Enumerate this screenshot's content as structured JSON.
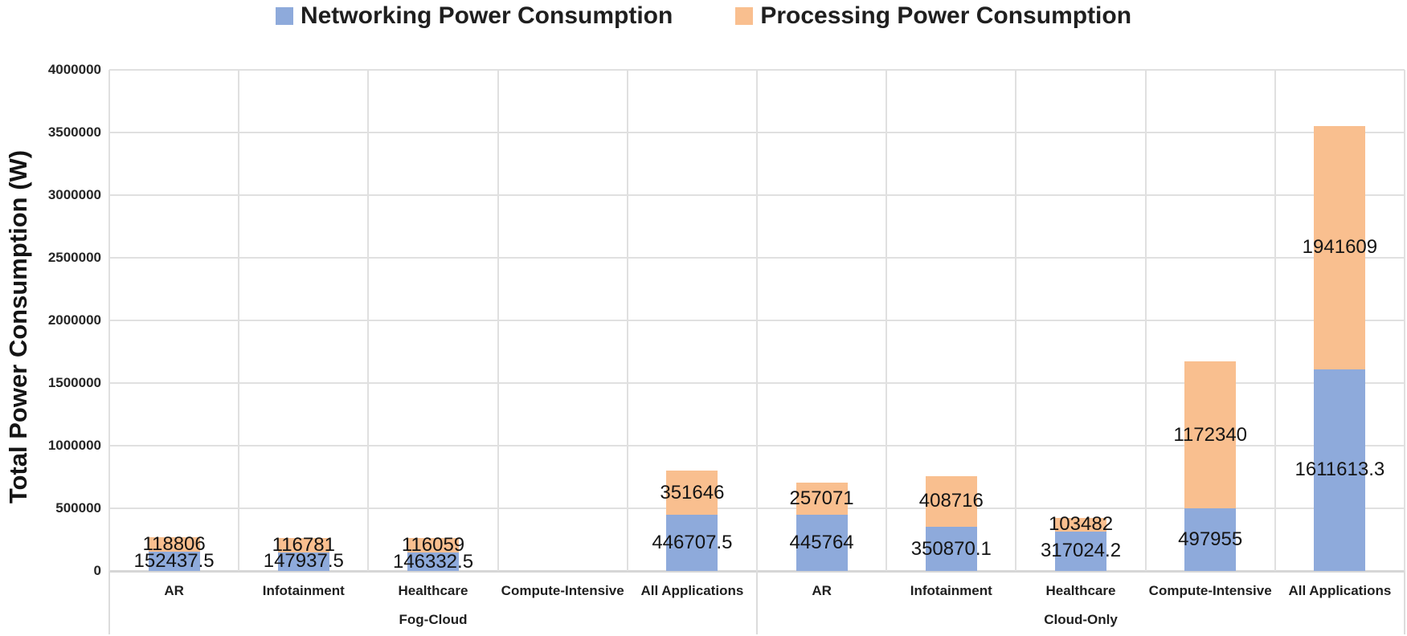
{
  "legend": {
    "items": [
      {
        "name": "networking",
        "label": "Networking Power Consumption",
        "color": "#8EAADB"
      },
      {
        "name": "processing",
        "label": "Processing Power Consumption",
        "color": "#F9BF8F"
      }
    ]
  },
  "chart_data": {
    "type": "bar",
    "stacked": true,
    "title": "",
    "xlabel": "",
    "ylabel": "Total Power Consumption (W)",
    "ylim": [
      0,
      4000000
    ],
    "y_ticks": [
      0,
      500000,
      1000000,
      1500000,
      2000000,
      2500000,
      3000000,
      3500000,
      4000000
    ],
    "grid": true,
    "legend_position": "top-center",
    "categories": [
      "AR",
      "Infotainment",
      "Healthcare",
      "Compute-Intensive",
      "All Applications",
      "AR",
      "Infotainment",
      "Healthcare",
      "Compute-Intensive",
      "All Applications"
    ],
    "group_spans": [
      {
        "label": "Fog-Cloud",
        "start": 0,
        "end": 4
      },
      {
        "label": "Cloud-Only",
        "start": 5,
        "end": 9
      }
    ],
    "series": [
      {
        "name": "Networking Power Consumption",
        "color": "#8EAADB",
        "values": [
          152437.5,
          147937.5,
          146332.5,
          null,
          446707.5,
          445764,
          350870.1,
          317024.2,
          497955,
          1611613.3
        ],
        "labels": [
          "152437.5",
          "147937.5",
          "146332.5",
          "",
          "446707.5",
          "445764",
          "350870.1",
          "317024.2",
          "497955",
          "1611613.3"
        ]
      },
      {
        "name": "Processing Power Consumption",
        "color": "#F9BF8F",
        "values": [
          118806,
          116781,
          116059,
          null,
          351646,
          257071,
          408716,
          103482,
          1172340,
          1941609
        ],
        "labels": [
          "118806",
          "116781",
          "116059",
          "",
          "351646",
          "257071",
          "408716",
          "103482",
          "1172340",
          "1941609"
        ]
      }
    ],
    "colors": {
      "gridline": "#E0E0E0",
      "axis_line": "#D6D6D6",
      "tick_text": "#262626",
      "data_label_text": "#141414"
    }
  }
}
